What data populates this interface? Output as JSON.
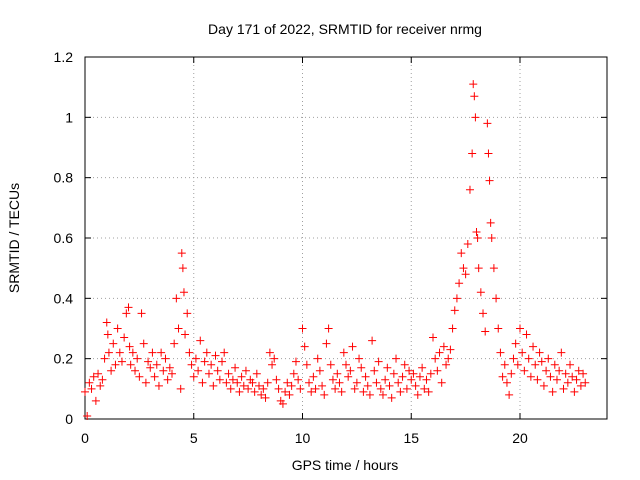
{
  "chart_data": {
    "type": "scatter",
    "title": "Day 171 of 2022, SRMTID for receiver nrmg",
    "xlabel": "GPS time / hours",
    "ylabel": "SRMTID / TECUs",
    "xlim": [
      0,
      24
    ],
    "ylim": [
      0,
      1.2
    ],
    "xticks": [
      0,
      5,
      10,
      15,
      20
    ],
    "xtick_labels": [
      "0",
      "5",
      "10",
      "15",
      "20"
    ],
    "yticks": [
      0,
      0.2,
      0.4,
      0.6,
      0.8,
      1.0,
      1.2
    ],
    "ytick_labels": [
      "0",
      "0.2",
      "0.4",
      "0.6",
      "0.8",
      "1",
      "1.2"
    ],
    "grid": true,
    "marker": "+",
    "series": [
      {
        "name": "SRMTID",
        "color": "#ff0000",
        "x": [
          0.0,
          0.1,
          0.2,
          0.3,
          0.4,
          0.5,
          0.6,
          0.7,
          0.8,
          0.9,
          1.0,
          1.05,
          1.1,
          1.2,
          1.3,
          1.4,
          1.5,
          1.6,
          1.7,
          1.8,
          1.9,
          2.0,
          2.05,
          2.1,
          2.2,
          2.3,
          2.4,
          2.5,
          2.6,
          2.7,
          2.8,
          2.9,
          3.0,
          3.1,
          3.2,
          3.3,
          3.4,
          3.5,
          3.6,
          3.7,
          3.8,
          3.9,
          4.0,
          4.1,
          4.2,
          4.3,
          4.4,
          4.45,
          4.5,
          4.55,
          4.6,
          4.7,
          4.8,
          4.9,
          5.0,
          5.1,
          5.2,
          5.3,
          5.4,
          5.5,
          5.6,
          5.7,
          5.8,
          5.9,
          6.0,
          6.1,
          6.2,
          6.3,
          6.4,
          6.5,
          6.6,
          6.7,
          6.8,
          6.9,
          7.0,
          7.1,
          7.2,
          7.3,
          7.4,
          7.5,
          7.6,
          7.7,
          7.8,
          7.9,
          8.0,
          8.1,
          8.2,
          8.3,
          8.4,
          8.5,
          8.6,
          8.7,
          8.8,
          8.9,
          9.0,
          9.1,
          9.2,
          9.3,
          9.4,
          9.5,
          9.6,
          9.7,
          9.8,
          9.9,
          10.0,
          10.1,
          10.2,
          10.3,
          10.4,
          10.5,
          10.6,
          10.7,
          10.8,
          10.9,
          11.0,
          11.1,
          11.2,
          11.3,
          11.4,
          11.5,
          11.6,
          11.7,
          11.8,
          11.9,
          12.0,
          12.1,
          12.2,
          12.3,
          12.4,
          12.5,
          12.6,
          12.7,
          12.8,
          12.9,
          13.0,
          13.1,
          13.2,
          13.3,
          13.4,
          13.5,
          13.6,
          13.7,
          13.8,
          13.9,
          14.0,
          14.1,
          14.2,
          14.3,
          14.4,
          14.5,
          14.6,
          14.7,
          14.8,
          14.9,
          15.0,
          15.1,
          15.2,
          15.3,
          15.4,
          15.5,
          15.6,
          15.7,
          15.8,
          15.9,
          16.0,
          16.1,
          16.2,
          16.3,
          16.4,
          16.5,
          16.6,
          16.7,
          16.8,
          16.9,
          17.0,
          17.1,
          17.2,
          17.3,
          17.4,
          17.5,
          17.6,
          17.7,
          17.8,
          17.85,
          17.9,
          17.95,
          18.0,
          18.05,
          18.1,
          18.2,
          18.3,
          18.4,
          18.5,
          18.55,
          18.6,
          18.65,
          18.7,
          18.8,
          18.9,
          19.0,
          19.1,
          19.2,
          19.3,
          19.4,
          19.5,
          19.6,
          19.7,
          19.8,
          19.9,
          20.0,
          20.1,
          20.2,
          20.3,
          20.4,
          20.5,
          20.6,
          20.7,
          20.8,
          20.9,
          21.0,
          21.1,
          21.2,
          21.3,
          21.4,
          21.5,
          21.6,
          21.7,
          21.8,
          21.9,
          22.0,
          22.1,
          22.2,
          22.3,
          22.4,
          22.5,
          22.6,
          22.7,
          22.8,
          22.9,
          23.0
        ],
        "y": [
          0.09,
          0.01,
          0.12,
          0.1,
          0.14,
          0.06,
          0.15,
          0.11,
          0.13,
          0.2,
          0.32,
          0.28,
          0.22,
          0.16,
          0.25,
          0.18,
          0.3,
          0.22,
          0.19,
          0.27,
          0.35,
          0.37,
          0.24,
          0.18,
          0.22,
          0.16,
          0.2,
          0.14,
          0.35,
          0.25,
          0.12,
          0.19,
          0.17,
          0.22,
          0.14,
          0.18,
          0.11,
          0.22,
          0.16,
          0.2,
          0.13,
          0.17,
          0.15,
          0.25,
          0.4,
          0.3,
          0.1,
          0.55,
          0.5,
          0.42,
          0.28,
          0.35,
          0.22,
          0.18,
          0.14,
          0.2,
          0.16,
          0.26,
          0.12,
          0.19,
          0.22,
          0.15,
          0.18,
          0.11,
          0.21,
          0.16,
          0.13,
          0.19,
          0.22,
          0.12,
          0.15,
          0.1,
          0.13,
          0.17,
          0.12,
          0.09,
          0.14,
          0.11,
          0.16,
          0.1,
          0.13,
          0.12,
          0.09,
          0.15,
          0.11,
          0.08,
          0.1,
          0.07,
          0.12,
          0.22,
          0.18,
          0.2,
          0.13,
          0.1,
          0.06,
          0.05,
          0.09,
          0.12,
          0.08,
          0.11,
          0.15,
          0.19,
          0.13,
          0.1,
          0.3,
          0.24,
          0.18,
          0.12,
          0.09,
          0.14,
          0.1,
          0.2,
          0.16,
          0.11,
          0.08,
          0.25,
          0.3,
          0.18,
          0.13,
          0.1,
          0.15,
          0.12,
          0.09,
          0.22,
          0.18,
          0.14,
          0.16,
          0.24,
          0.1,
          0.12,
          0.2,
          0.17,
          0.09,
          0.14,
          0.11,
          0.08,
          0.26,
          0.16,
          0.12,
          0.19,
          0.1,
          0.08,
          0.13,
          0.17,
          0.11,
          0.07,
          0.15,
          0.2,
          0.12,
          0.09,
          0.14,
          0.18,
          0.1,
          0.16,
          0.13,
          0.15,
          0.11,
          0.08,
          0.14,
          0.17,
          0.1,
          0.13,
          0.09,
          0.15,
          0.27,
          0.2,
          0.16,
          0.22,
          0.12,
          0.24,
          0.18,
          0.2,
          0.23,
          0.3,
          0.36,
          0.4,
          0.45,
          0.55,
          0.5,
          0.48,
          0.58,
          0.76,
          0.88,
          1.11,
          1.07,
          1.0,
          0.62,
          0.6,
          0.5,
          0.42,
          0.35,
          0.29,
          0.98,
          0.88,
          0.79,
          0.65,
          0.6,
          0.5,
          0.4,
          0.3,
          0.22,
          0.14,
          0.18,
          0.12,
          0.08,
          0.15,
          0.2,
          0.25,
          0.18,
          0.3,
          0.22,
          0.16,
          0.28,
          0.2,
          0.14,
          0.24,
          0.18,
          0.13,
          0.22,
          0.19,
          0.11,
          0.16,
          0.2,
          0.14,
          0.09,
          0.18,
          0.13,
          0.16,
          0.22,
          0.1,
          0.15,
          0.12,
          0.18,
          0.14,
          0.09,
          0.13,
          0.16,
          0.11,
          0.15,
          0.12
        ]
      }
    ]
  }
}
